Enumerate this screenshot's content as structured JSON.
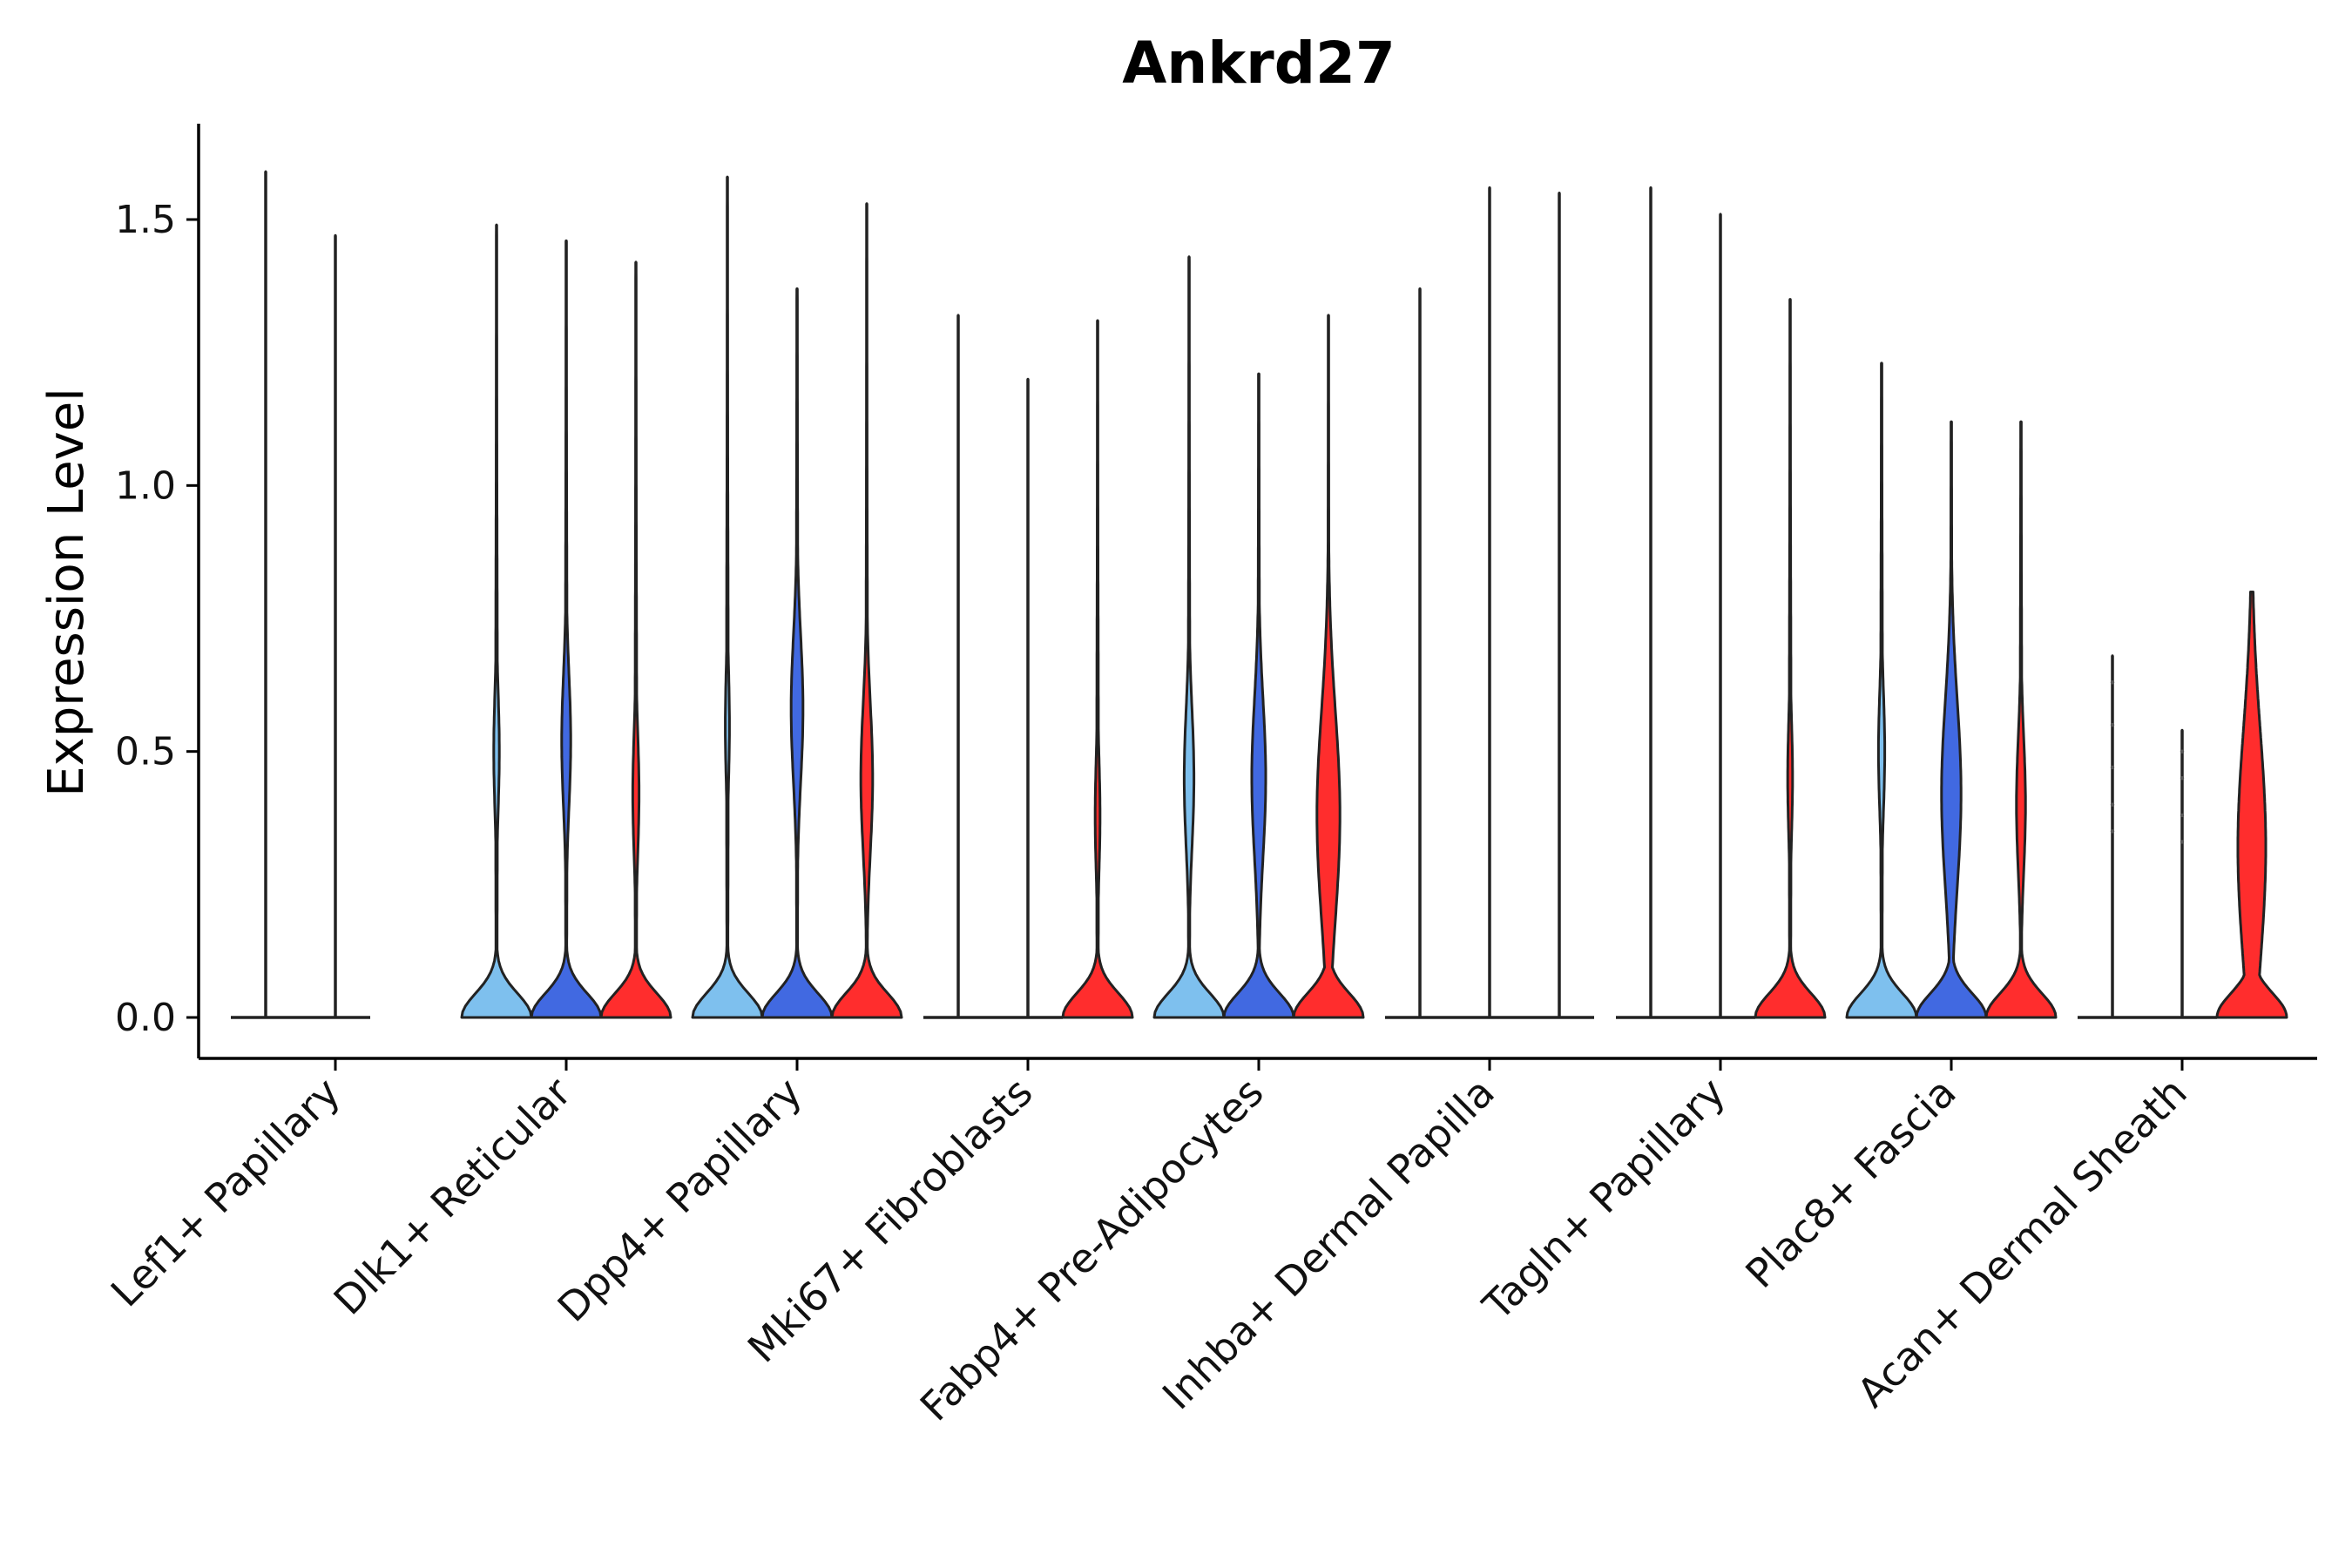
{
  "chart_data": {
    "type": "violin",
    "title": "Ankrd27",
    "xlabel": "",
    "ylabel": "Expression Level",
    "ylim": [
      -0.08,
      1.68
    ],
    "yticks": [
      0.0,
      0.5,
      1.0,
      1.5
    ],
    "ytick_labels": [
      "0.0",
      "0.5",
      "1.0",
      "1.5"
    ],
    "grid": false,
    "legend": "none",
    "series_colors": [
      "#7ec0ee",
      "#4169e1",
      "#ff2d2d"
    ],
    "categories": [
      "Lef1+ Papillary",
      "Dlk1+ Reticular",
      "Dpp4+ Papillary",
      "Mki67+ Fibroblasts",
      "Fabp4+ Pre-Adipocytes",
      "Inhba+ Dermal Papilla",
      "Tagln+ Papillary",
      "Plac8+ Fascia",
      "Acan+ Dermal Sheath"
    ],
    "groups": [
      {
        "category": "Lef1+ Papillary",
        "violins": [
          {
            "series": 0,
            "max": 1.59,
            "profile": "flat"
          },
          {
            "series": 1,
            "max": 1.47,
            "profile": "flat"
          }
        ]
      },
      {
        "category": "Dlk1+ Reticular",
        "violins": [
          {
            "series": 0,
            "max": 1.49,
            "profile": "bimodal",
            "mode": 0.5,
            "mode_width": 0.08
          },
          {
            "series": 1,
            "max": 1.46,
            "profile": "bimodal",
            "mode": 0.52,
            "mode_width": 0.13
          },
          {
            "series": 2,
            "max": 1.42,
            "profile": "bimodal",
            "mode": 0.42,
            "mode_width": 0.09
          }
        ]
      },
      {
        "category": "Dpp4+ Papillary",
        "violins": [
          {
            "series": 0,
            "max": 1.58,
            "profile": "bimodal",
            "mode": 0.55,
            "mode_width": 0.06
          },
          {
            "series": 1,
            "max": 1.37,
            "profile": "bimodal",
            "mode": 0.58,
            "mode_width": 0.17
          },
          {
            "series": 2,
            "max": 1.53,
            "profile": "bimodal",
            "mode": 0.45,
            "mode_width": 0.17
          }
        ]
      },
      {
        "category": "Mki67+ Fibroblasts",
        "violins": [
          {
            "series": 0,
            "max": 1.32,
            "profile": "flat"
          },
          {
            "series": 1,
            "max": 1.2,
            "profile": "flat"
          },
          {
            "series": 2,
            "max": 1.31,
            "profile": "bimodal",
            "mode": 0.38,
            "mode_width": 0.07
          }
        ]
      },
      {
        "category": "Fabp4+ Pre-Adipocytes",
        "violins": [
          {
            "series": 0,
            "max": 1.43,
            "profile": "bimodal",
            "mode": 0.45,
            "mode_width": 0.14
          },
          {
            "series": 1,
            "max": 1.21,
            "profile": "bimodal",
            "mode": 0.45,
            "mode_width": 0.2
          },
          {
            "series": 2,
            "max": 1.32,
            "profile": "bimodal",
            "mode": 0.38,
            "mode_width": 0.33
          }
        ]
      },
      {
        "category": "Inhba+ Dermal Papilla",
        "violins": [
          {
            "series": 0,
            "max": 1.37,
            "profile": "flat"
          },
          {
            "series": 1,
            "max": 1.56,
            "profile": "flat"
          },
          {
            "series": 2,
            "max": 1.55,
            "profile": "flat"
          }
        ]
      },
      {
        "category": "Tagln+ Papillary",
        "violins": [
          {
            "series": 0,
            "max": 1.56,
            "profile": "flat"
          },
          {
            "series": 1,
            "max": 1.51,
            "profile": "flat"
          },
          {
            "series": 2,
            "max": 1.35,
            "profile": "bimodal",
            "mode": 0.45,
            "mode_width": 0.07
          }
        ]
      },
      {
        "category": "Plac8+ Fascia",
        "violins": [
          {
            "series": 0,
            "max": 1.23,
            "profile": "bimodal",
            "mode": 0.5,
            "mode_width": 0.09
          },
          {
            "series": 1,
            "max": 1.12,
            "profile": "bimodal",
            "mode": 0.42,
            "mode_width": 0.28
          },
          {
            "series": 2,
            "max": 1.12,
            "profile": "bimodal",
            "mode": 0.4,
            "mode_width": 0.13
          }
        ]
      },
      {
        "category": "Acan+ Dermal Sheath",
        "violins": [
          {
            "series": 0,
            "max": 0.68,
            "profile": "flat",
            "points": [
              0.35,
              0.4,
              0.47,
              0.55,
              0.63
            ]
          },
          {
            "series": 1,
            "max": 0.54,
            "profile": "flat",
            "points": [
              0.33,
              0.38,
              0.45,
              0.5
            ]
          },
          {
            "series": 2,
            "max": 0.8,
            "profile": "bimodal",
            "mode": 0.32,
            "mode_width": 0.4
          }
        ]
      }
    ]
  }
}
